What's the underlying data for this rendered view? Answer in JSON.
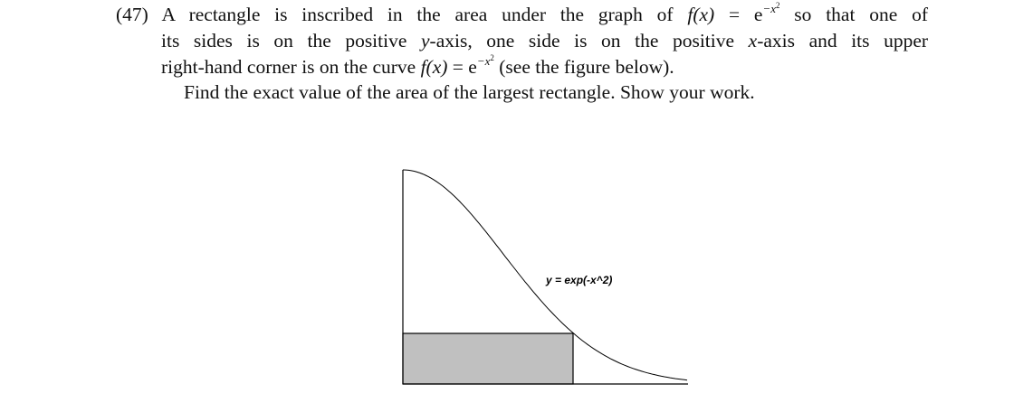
{
  "problem": {
    "number": "(47)",
    "line1_a": "A rectangle is inscribed in the area under the graph of",
    "func_1": "f(x)",
    "eq_1": "= e",
    "exp_1": "−x",
    "exp_power_1": "2",
    "line1_b": "so that one of",
    "line2_a": "its sides is on the positive",
    "var_y": "y",
    "line2_b": "-axis, one side is on the positive",
    "var_x": "x",
    "line2_c": "-axis and its upper",
    "line3_a": "right-hand corner is on the curve",
    "func_2": "f(x)",
    "eq_2": "= e",
    "exp_2": "−x",
    "exp_power_2": "2",
    "line3_b": "(see the figure below).",
    "line4": "Find the exact value of the area of the largest rectangle. Show your work."
  },
  "figure": {
    "curve_label": "y = exp(-x^2)"
  }
}
